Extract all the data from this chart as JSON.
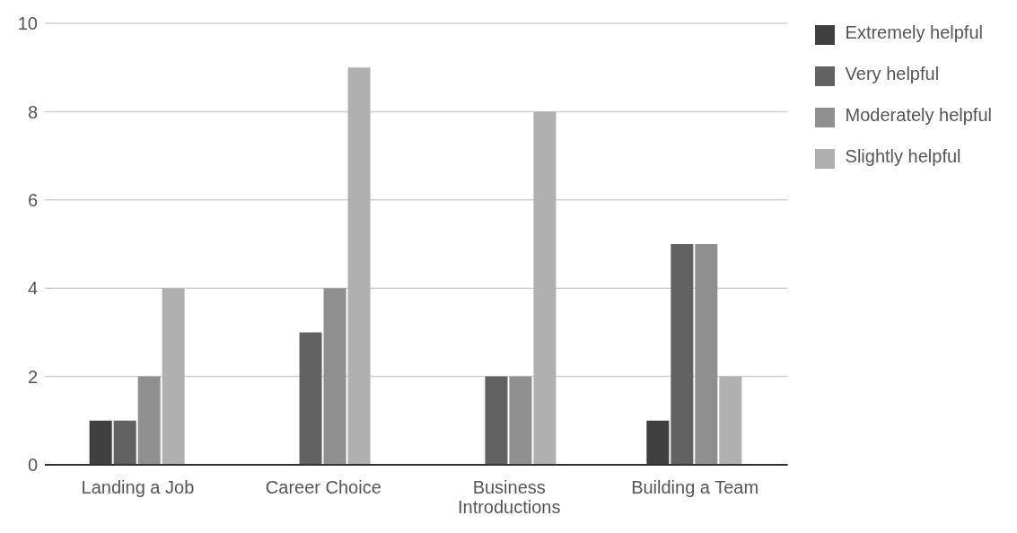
{
  "chart_data": {
    "type": "bar",
    "categories": [
      "Landing a Job",
      "Career Choice",
      "Business Introductions",
      "Building a Team"
    ],
    "series": [
      {
        "name": "Extremely helpful",
        "color": "#404040",
        "values": [
          1,
          0,
          0,
          1
        ]
      },
      {
        "name": "Very helpful",
        "color": "#626262",
        "values": [
          1,
          3,
          2,
          5
        ]
      },
      {
        "name": "Moderately helpful",
        "color": "#8f8f8f",
        "values": [
          2,
          4,
          2,
          5
        ]
      },
      {
        "name": "Slightly helpful",
        "color": "#b0b0b0",
        "values": [
          4,
          9,
          8,
          2
        ]
      }
    ],
    "ylim": [
      0,
      10
    ],
    "yticks": [
      0,
      2,
      4,
      6,
      8,
      10
    ],
    "grid": "y",
    "legend": "top right"
  }
}
